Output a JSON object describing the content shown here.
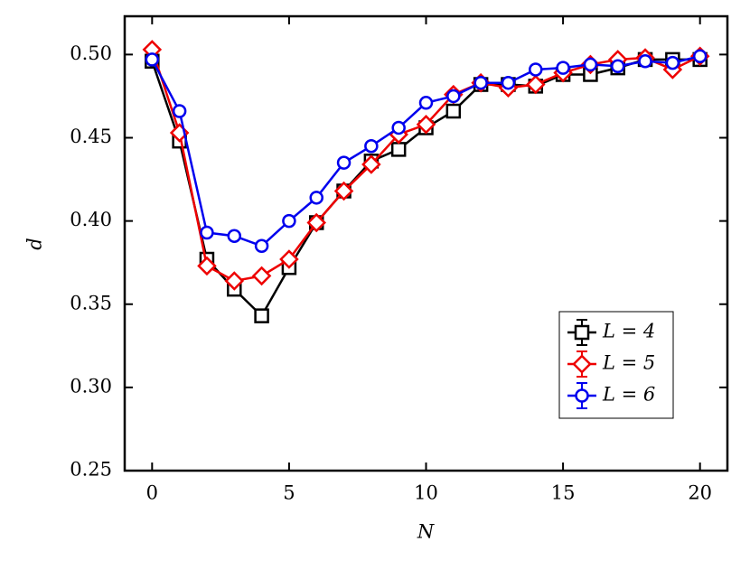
{
  "chart_data": {
    "type": "errorbar_line",
    "xlabel": "N",
    "ylabel": "d",
    "x": [
      0,
      1,
      2,
      3,
      4,
      5,
      6,
      7,
      8,
      9,
      10,
      11,
      12,
      13,
      14,
      15,
      16,
      17,
      18,
      19,
      20
    ],
    "xlim": [
      -1,
      21
    ],
    "xticks": [
      0,
      5,
      10,
      15,
      20
    ],
    "ylim": [
      0.25,
      0.523
    ],
    "yticks": [
      0.25,
      {
        "value": 0.3,
        "label": "0.30"
      },
      0.35,
      {
        "value": 0.4,
        "label": "0.40"
      },
      0.45,
      {
        "value": 0.5,
        "label": "0.50"
      }
    ],
    "legend_position": "lower right",
    "series": [
      {
        "name": "L = 4",
        "color": "#000000",
        "marker": "square",
        "values": [
          0.496,
          0.448,
          0.377,
          0.359,
          0.343,
          0.372,
          0.399,
          0.418,
          0.436,
          0.443,
          0.456,
          0.466,
          0.482,
          0.482,
          0.481,
          0.488,
          0.488,
          0.492,
          0.497,
          0.497,
          0.497
        ],
        "errors": [
          0.002,
          0.002,
          0.003,
          0.003,
          0.003,
          0.003,
          0.002,
          0.002,
          0.002,
          0.002,
          0.002,
          0.003,
          0.002,
          0.002,
          0.002,
          0.002,
          0.003,
          0.002,
          0.002,
          0.002,
          0.002
        ]
      },
      {
        "name": "L = 5",
        "color": "#ee0000",
        "marker": "diamond",
        "values": [
          0.503,
          0.453,
          0.373,
          0.364,
          0.367,
          0.377,
          0.399,
          0.418,
          0.434,
          0.452,
          0.458,
          0.476,
          0.483,
          0.48,
          0.482,
          0.489,
          0.494,
          0.497,
          0.498,
          0.491,
          0.499
        ],
        "errors": [
          0.002,
          0.002,
          0.002,
          0.002,
          0.002,
          0.002,
          0.002,
          0.002,
          0.002,
          0.002,
          0.002,
          0.002,
          0.002,
          0.002,
          0.002,
          0.002,
          0.002,
          0.002,
          0.002,
          0.002,
          0.002
        ]
      },
      {
        "name": "L = 6",
        "color": "#0000ee",
        "marker": "circle",
        "values": [
          0.497,
          0.466,
          0.393,
          0.391,
          0.385,
          0.4,
          0.414,
          0.435,
          0.445,
          0.456,
          0.471,
          0.475,
          0.483,
          0.483,
          0.491,
          0.492,
          0.494,
          0.493,
          0.496,
          0.495,
          0.499
        ],
        "errors": [
          0.002,
          0.002,
          0.002,
          0.002,
          0.002,
          0.002,
          0.002,
          0.002,
          0.002,
          0.002,
          0.002,
          0.002,
          0.002,
          0.002,
          0.002,
          0.002,
          0.002,
          0.002,
          0.002,
          0.002,
          0.002
        ]
      }
    ]
  }
}
